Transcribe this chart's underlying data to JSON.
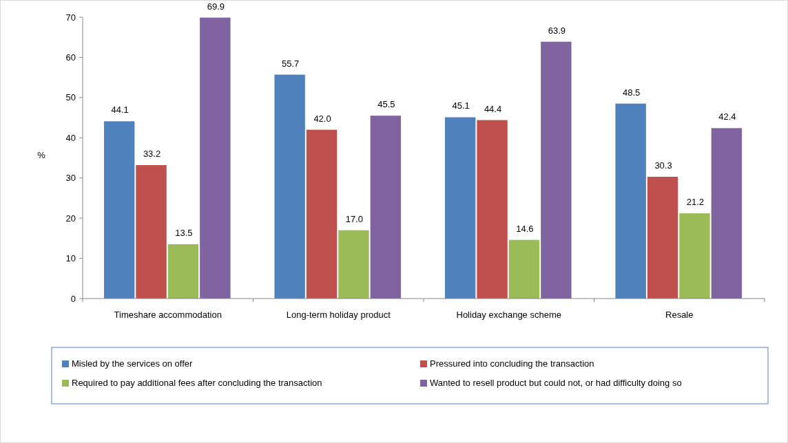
{
  "chart_data": {
    "type": "bar",
    "ylabel": "%",
    "categories": [
      "Timeshare accommodation",
      "Long-term holiday product",
      "Holiday exchange scheme",
      "Resale"
    ],
    "series": [
      {
        "name": "Misled by the services on offer",
        "color": "#4f81bd",
        "values": [
          44.1,
          55.7,
          45.1,
          48.5
        ],
        "value_labels": [
          "44.1",
          "55.7",
          "45.1",
          "48.5"
        ]
      },
      {
        "name": "Pressured into concluding the transaction",
        "color": "#c0504d",
        "values": [
          33.2,
          42.0,
          44.4,
          30.3
        ],
        "value_labels": [
          "33.2",
          "42.0",
          "44.4",
          "30.3"
        ]
      },
      {
        "name": "Required to pay additional fees after concluding the transaction",
        "color": "#9bbb59",
        "values": [
          13.5,
          17.0,
          14.6,
          21.2
        ],
        "value_labels": [
          "13.5",
          "17.0",
          "14.6",
          "21.2"
        ]
      },
      {
        "name": "Wanted to resell product but could not, or had difficulty doing so",
        "color": "#8064a2",
        "values": [
          69.9,
          45.5,
          63.9,
          42.4
        ],
        "value_labels": [
          "69.9",
          "45.5",
          "63.9",
          "42.4"
        ]
      }
    ],
    "ylim": [
      0,
      70
    ],
    "yticks": [
      0,
      10,
      20,
      30,
      40,
      50,
      60,
      70
    ],
    "grid": false,
    "legend": "bottom"
  }
}
